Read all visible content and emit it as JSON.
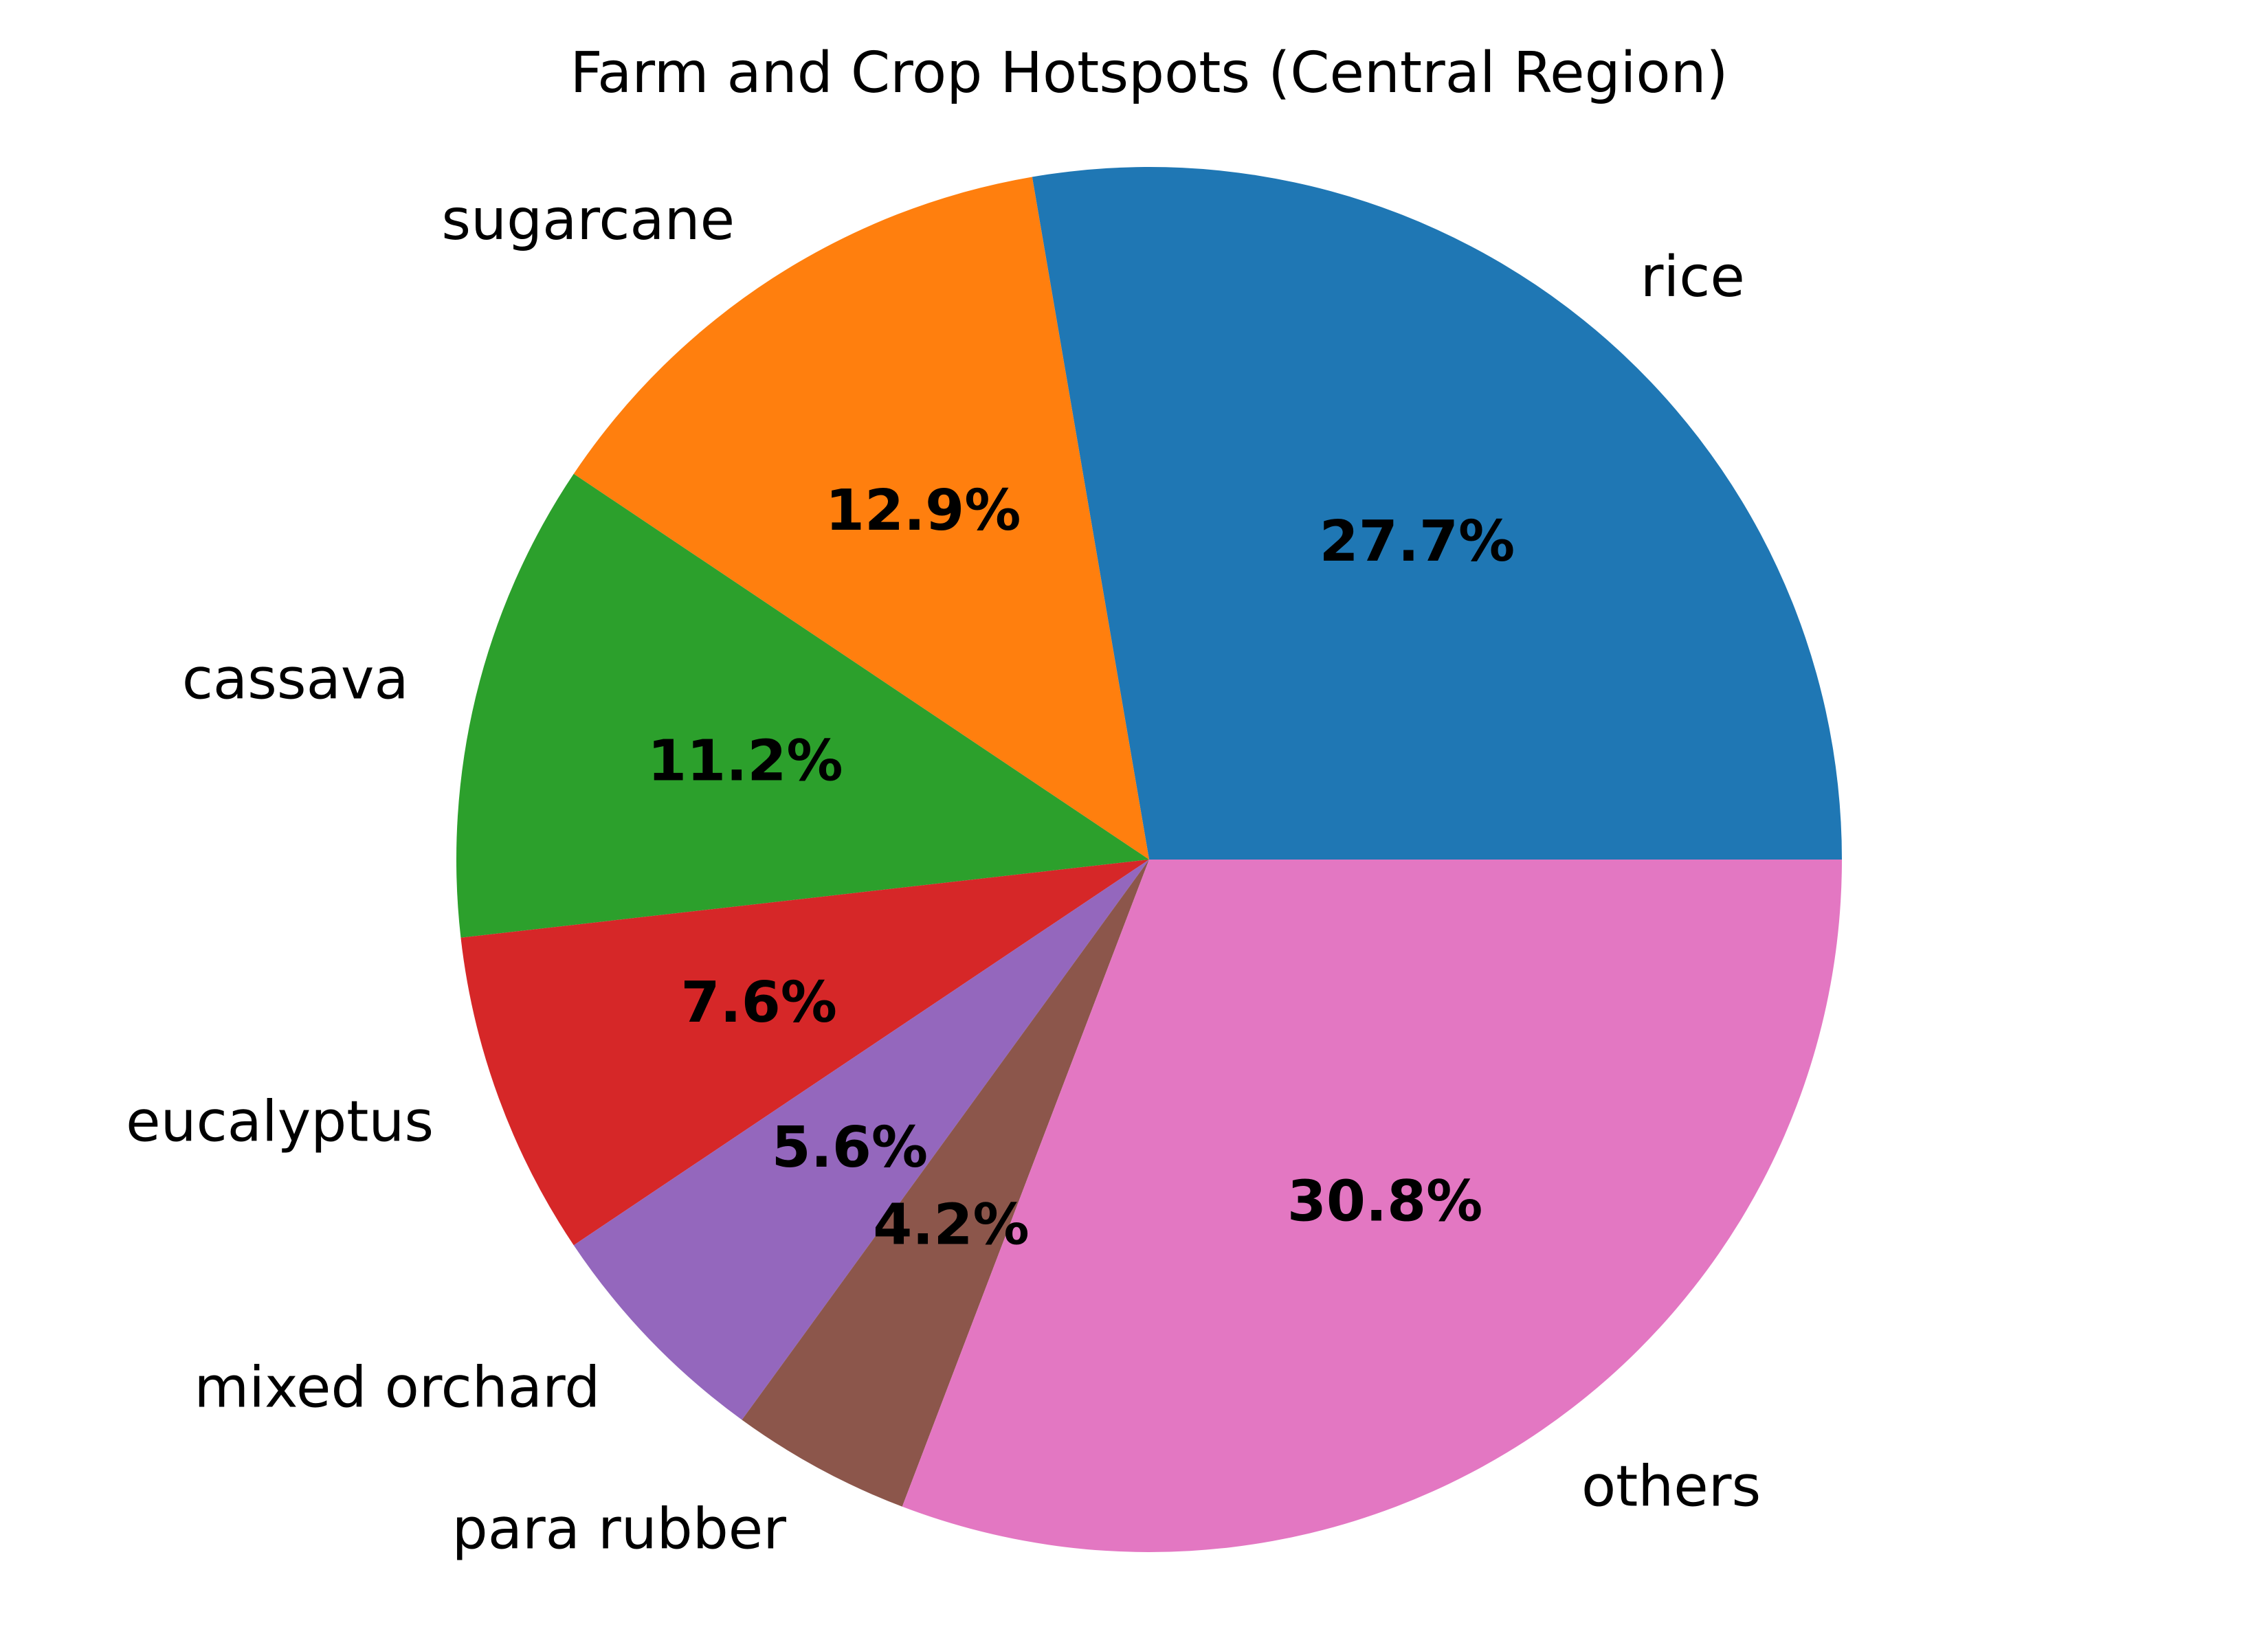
{
  "chart_data": {
    "type": "pie",
    "title": "Farm and Crop Hotspots (Central Region)",
    "start_angle_deg": 0,
    "direction": "counterclockwise",
    "slices": [
      {
        "label": "rice",
        "value": 27.7,
        "pct_text": "27.7%",
        "color": "#1f77b4"
      },
      {
        "label": "sugarcane",
        "value": 12.9,
        "pct_text": "12.9%",
        "color": "#ff7f0e"
      },
      {
        "label": "cassava",
        "value": 11.2,
        "pct_text": "11.2%",
        "color": "#2ca02c"
      },
      {
        "label": "eucalyptus",
        "value": 7.6,
        "pct_text": "7.6%",
        "color": "#d62728"
      },
      {
        "label": "mixed orchard",
        "value": 5.6,
        "pct_text": "5.6%",
        "color": "#9467bd"
      },
      {
        "label": "para rubber",
        "value": 4.2,
        "pct_text": "4.2%",
        "color": "#8c564b"
      },
      {
        "label": "others",
        "value": 30.8,
        "pct_text": "30.8%",
        "color": "#e377c2"
      }
    ]
  }
}
